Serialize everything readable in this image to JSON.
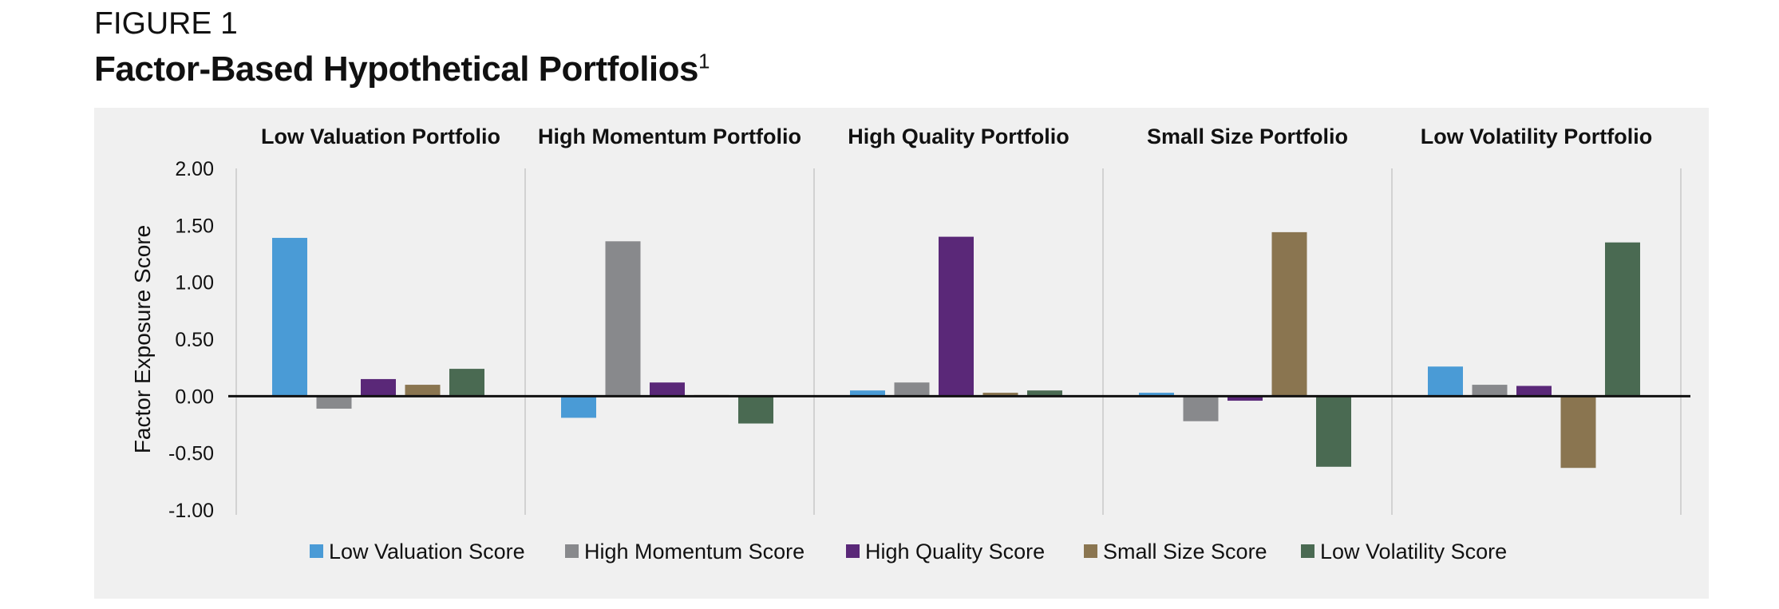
{
  "figure": {
    "label": "FIGURE 1",
    "title": "Factor-Based Hypothetical Portfolios",
    "footnote_mark": "1"
  },
  "chart_data": {
    "type": "bar",
    "categories": [
      "Low Valuation Portfolio",
      "High Momentum Portfolio",
      "High Quality Portfolio",
      "Small Size Portfolio",
      "Low Volatility Portfolio"
    ],
    "ylabel": "Factor Exposure Score",
    "xlabel": "",
    "ylim": [
      -1.0,
      2.0
    ],
    "yticks": [
      "2.00",
      "1.50",
      "1.00",
      "0.50",
      "0.00",
      "-0.50",
      "-1.00"
    ],
    "ytick_values": [
      2.0,
      1.5,
      1.0,
      0.5,
      0.0,
      -0.5,
      -1.0
    ],
    "legend_position": "bottom",
    "series": [
      {
        "name": "Low Valuation Score",
        "color": "#4a9bd6",
        "values": [
          1.39,
          -0.19,
          0.05,
          0.03,
          0.26
        ]
      },
      {
        "name": "High Momentum Score",
        "color": "#88898c",
        "values": [
          -0.11,
          1.36,
          0.12,
          -0.22,
          0.1
        ]
      },
      {
        "name": "High Quality Score",
        "color": "#5a2878",
        "values": [
          0.15,
          0.12,
          1.4,
          -0.04,
          0.09
        ]
      },
      {
        "name": "Small Size Score",
        "color": "#8a7550",
        "values": [
          0.1,
          0.01,
          0.03,
          1.44,
          -0.63
        ]
      },
      {
        "name": "Low Volatility Score",
        "color": "#4a6a52",
        "values": [
          0.24,
          -0.24,
          0.05,
          -0.62,
          1.35
        ]
      }
    ]
  }
}
